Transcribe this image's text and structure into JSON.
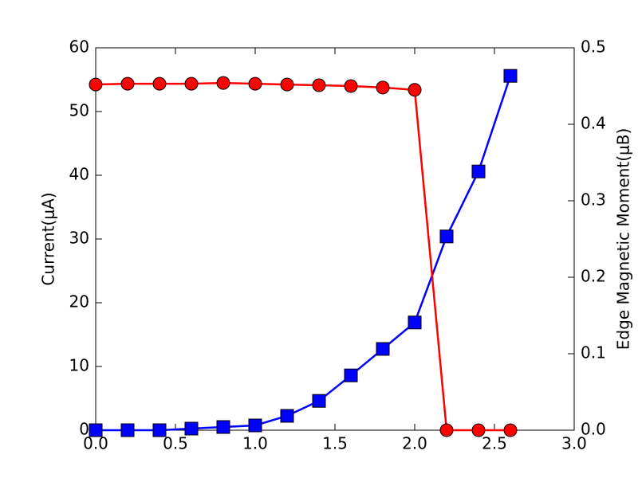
{
  "chart_data": {
    "type": "line",
    "ylabel": "Current(μA)",
    "y2label": "Edge Magnetic Moment(μB)",
    "x": [
      0.0,
      0.2,
      0.4,
      0.6,
      0.8,
      1.0,
      1.2,
      1.4,
      1.6,
      1.8,
      2.0,
      2.2,
      2.4,
      2.6
    ],
    "series": [
      {
        "color": "#0000ff",
        "marker": "square",
        "axis": "y",
        "values": [
          0,
          0,
          0,
          0.25,
          0.5,
          0.75,
          2.25,
          4.6,
          8.6,
          12.75,
          16.9,
          30.4,
          40.6,
          55.6
        ]
      },
      {
        "color": "#ff0000",
        "marker": "circle",
        "axis": "y2",
        "values": [
          0.452,
          0.453,
          0.453,
          0.453,
          0.454,
          0.453,
          0.452,
          0.451,
          0.45,
          0.448,
          0.445,
          0,
          0,
          0
        ]
      }
    ],
    "xlim": [
      0,
      3
    ],
    "xticks": [
      {
        "value": 0,
        "label": "0.0"
      },
      {
        "value": 0.5,
        "label": "0.5"
      },
      {
        "value": 1,
        "label": "1.0"
      },
      {
        "value": 1.5,
        "label": "1.5"
      },
      {
        "value": 2,
        "label": "2.0"
      },
      {
        "value": 2.5,
        "label": "2.5"
      },
      {
        "value": 3,
        "label": "3.0"
      }
    ],
    "ylim": [
      0,
      60
    ],
    "yticks": [
      0,
      10,
      20,
      30,
      40,
      50,
      60
    ],
    "y2lim": [
      0,
      0.5
    ],
    "y2ticks": [
      {
        "value": 0,
        "label": "0.0"
      },
      0.1,
      0.2,
      0.3,
      0.4,
      0.5
    ],
    "grid": false
  }
}
